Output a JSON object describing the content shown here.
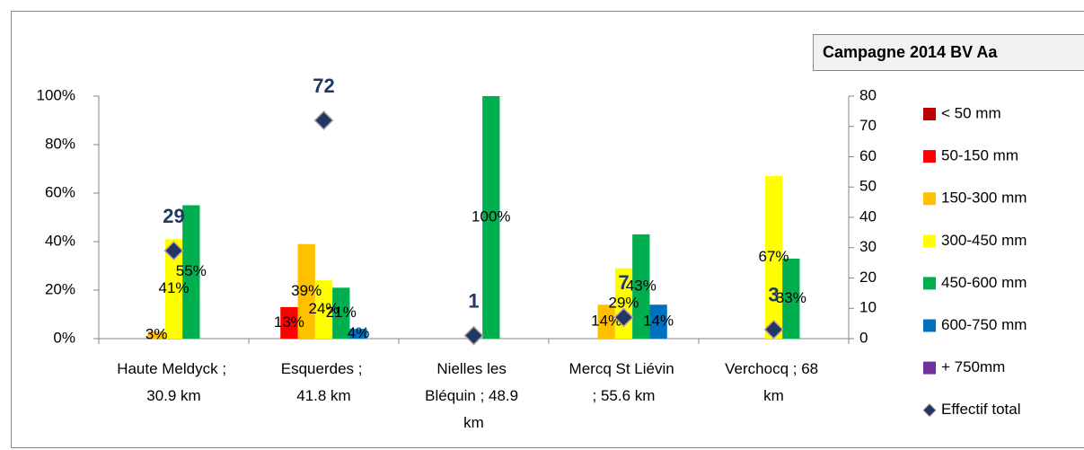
{
  "chart_data": {
    "type": "bar",
    "title": "Campagne 2014 BV Aa",
    "categories": [
      "Haute Meldyck ; 30.9 km",
      "Esquerdes ; 41.8 km",
      "Nielles les Bléquin ; 48.9 km",
      "Mercq St Liévin ; 55.6 km",
      "Verchocq ; 68 km"
    ],
    "series": [
      {
        "name": "< 50 mm",
        "color": "#c00000",
        "values": [
          null,
          null,
          null,
          null,
          null
        ],
        "value_labels": [
          null,
          null,
          null,
          null,
          null
        ]
      },
      {
        "name": "50-150 mm",
        "color": "#ff0000",
        "values": [
          null,
          13,
          null,
          null,
          null
        ],
        "value_labels": [
          null,
          "13%",
          null,
          null,
          null
        ]
      },
      {
        "name": "150-300 mm",
        "color": "#ffc000",
        "values": [
          3,
          39,
          null,
          14,
          null
        ],
        "value_labels": [
          "3%",
          "39%",
          null,
          "14%",
          null
        ]
      },
      {
        "name": "300-450 mm",
        "color": "#ffff00",
        "values": [
          41,
          24,
          null,
          29,
          67
        ],
        "value_labels": [
          "41%",
          "24%",
          null,
          "29%",
          "67%"
        ]
      },
      {
        "name": "450-600 mm",
        "color": "#00b050",
        "values": [
          55,
          21,
          100,
          43,
          33
        ],
        "value_labels": [
          "55%",
          "21%",
          "100%",
          "43%",
          "33%"
        ]
      },
      {
        "name": "600-750 mm",
        "color": "#0070c0",
        "values": [
          null,
          4,
          null,
          14,
          null
        ],
        "value_labels": [
          null,
          "4%",
          null,
          "14%",
          null
        ]
      },
      {
        "name": "+ 750mm",
        "color": "#7030a0",
        "values": [
          null,
          null,
          null,
          null,
          null
        ],
        "value_labels": [
          null,
          null,
          null,
          null,
          null
        ]
      },
      {
        "name": "Effectif total",
        "type": "scatter",
        "axis": "y2",
        "color": "#1f3864",
        "values": [
          29,
          72,
          1,
          7,
          3
        ]
      }
    ],
    "ylim": [
      0,
      100
    ],
    "yticks": [
      {
        "value": 0,
        "label": "0%"
      },
      {
        "value": 20,
        "label": "20%"
      },
      {
        "value": 40,
        "label": "40%"
      },
      {
        "value": 60,
        "label": "60%"
      },
      {
        "value": 80,
        "label": "80%"
      },
      {
        "value": 100,
        "label": "100%"
      }
    ],
    "y2lim": [
      0,
      80
    ],
    "y2ticks": [
      0,
      10,
      20,
      30,
      40,
      50,
      60,
      70,
      80
    ],
    "legend": "right"
  }
}
